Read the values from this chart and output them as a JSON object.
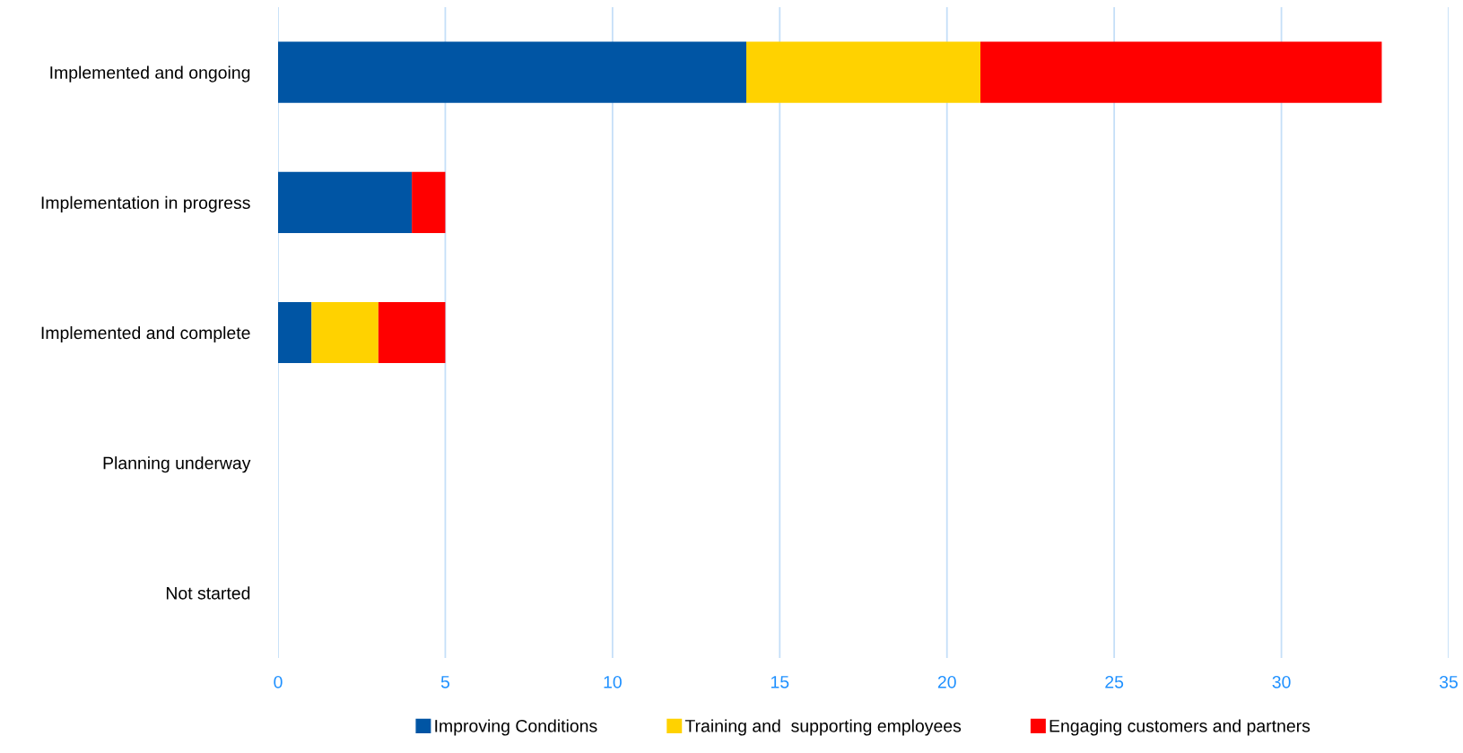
{
  "chart_data": {
    "type": "bar",
    "orientation": "horizontal",
    "stacked": true,
    "categories": [
      "Implemented and ongoing",
      "Implementation in progress",
      "Implemented and complete",
      "Planning underway",
      "Not started"
    ],
    "series": [
      {
        "name": "Improving Conditions",
        "color": "#0055a4",
        "values": [
          14,
          4,
          1,
          0,
          0
        ]
      },
      {
        "name": "Training and  supporting employees",
        "color": "#ffd200",
        "values": [
          7,
          0,
          2,
          0,
          0
        ]
      },
      {
        "name": "Engaging customers and partners",
        "color": "#ff0000",
        "values": [
          12,
          1,
          2,
          0,
          0
        ]
      }
    ],
    "xlim": [
      0,
      35
    ],
    "xticks": [
      0,
      5,
      10,
      15,
      20,
      25,
      30,
      35
    ],
    "grid": "x",
    "legend": "bottom"
  }
}
